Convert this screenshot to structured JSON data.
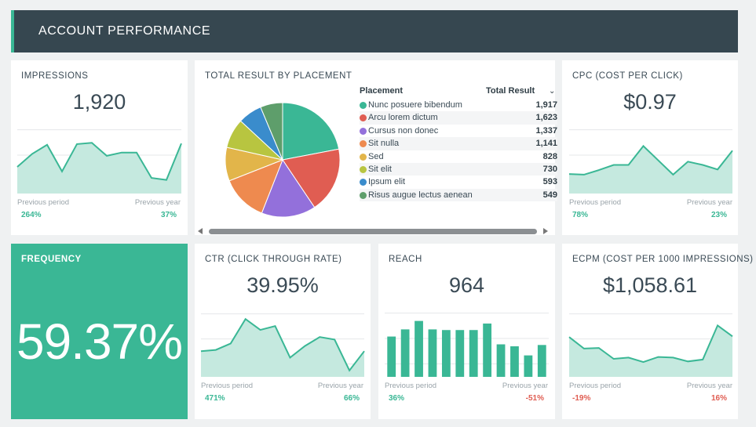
{
  "header": {
    "title": "ACCOUNT PERFORMANCE"
  },
  "compare_labels": {
    "previous_period": "Previous period",
    "previous_year": "Previous year"
  },
  "colors": {
    "accent": "#3ab795",
    "header_bg": "#364750",
    "negative": "#e05d52",
    "area_fill": "#c5e9df"
  },
  "impressions": {
    "title": "IMPRESSIONS",
    "value": "1,920",
    "previous_period": "264%",
    "previous_year": "37%",
    "chart_data": {
      "type": "area",
      "values": [
        41,
        61,
        75,
        34,
        76,
        78,
        58,
        63,
        63,
        24,
        21,
        77
      ]
    }
  },
  "placement": {
    "title": "TOTAL RESULT BY PLACEMENT",
    "col_placement": "Placement",
    "col_total": "Total Result",
    "sort_icon": "chevron-down-icon",
    "chart_data": {
      "type": "pie",
      "categories": [
        "Nunc posuere bibendum",
        "Arcu lorem dictum",
        "Cursus non donec",
        "Sit nulla",
        "Sed",
        "Sit elit",
        "Ipsum elit",
        "Risus augue lectus aenean"
      ],
      "values": [
        1917,
        1623,
        1337,
        1141,
        828,
        730,
        593,
        549
      ],
      "colors": [
        "#3ab795",
        "#e05d52",
        "#9370db",
        "#ee8a4f",
        "#e2b54a",
        "#b8c540",
        "#3a8ccc",
        "#5e9e6b"
      ]
    },
    "rows": [
      {
        "label": "Nunc posuere bibendum",
        "value": "1,917"
      },
      {
        "label": "Arcu lorem dictum",
        "value": "1,623"
      },
      {
        "label": "Cursus non donec",
        "value": "1,337"
      },
      {
        "label": "Sit nulla",
        "value": "1,141"
      },
      {
        "label": "Sed",
        "value": "828"
      },
      {
        "label": "Sit elit",
        "value": "730"
      },
      {
        "label": "Ipsum elit",
        "value": "593"
      },
      {
        "label": "Risus augue lectus aenean",
        "value": "549"
      }
    ]
  },
  "cpc": {
    "title": "CPC (COST PER CLICK)",
    "value": "$0.97",
    "previous_period": "78%",
    "previous_year": "23%",
    "chart_data": {
      "type": "area",
      "values": [
        30,
        29,
        36,
        44,
        44,
        73,
        51,
        29,
        49,
        44,
        37,
        66
      ]
    }
  },
  "frequency": {
    "title": "FREQUENCY",
    "value": "59.37%"
  },
  "ctr": {
    "title": "CTR (CLICK THROUGH RATE)",
    "value": "39.95%",
    "previous_period": "471%",
    "previous_year": "66%",
    "chart_data": {
      "type": "area",
      "values": [
        40,
        42,
        52,
        90,
        73,
        79,
        30,
        48,
        62,
        58,
        10,
        40
      ]
    }
  },
  "reach": {
    "title": "REACH",
    "value": "964",
    "previous_period": "36%",
    "previous_year": "-51%",
    "chart_data": {
      "type": "bar",
      "values": [
        62,
        73,
        86,
        73,
        72,
        72,
        72,
        82,
        50,
        47,
        33,
        49
      ]
    }
  },
  "ecpm": {
    "title": "ECPM (COST PER 1000 IMPRESSIONS)",
    "value": "$1,058.61",
    "previous_period": "-19%",
    "previous_year": "16%",
    "chart_data": {
      "type": "area",
      "values": [
        62,
        44,
        45,
        28,
        30,
        23,
        31,
        30,
        24,
        27,
        80,
        63
      ]
    }
  }
}
